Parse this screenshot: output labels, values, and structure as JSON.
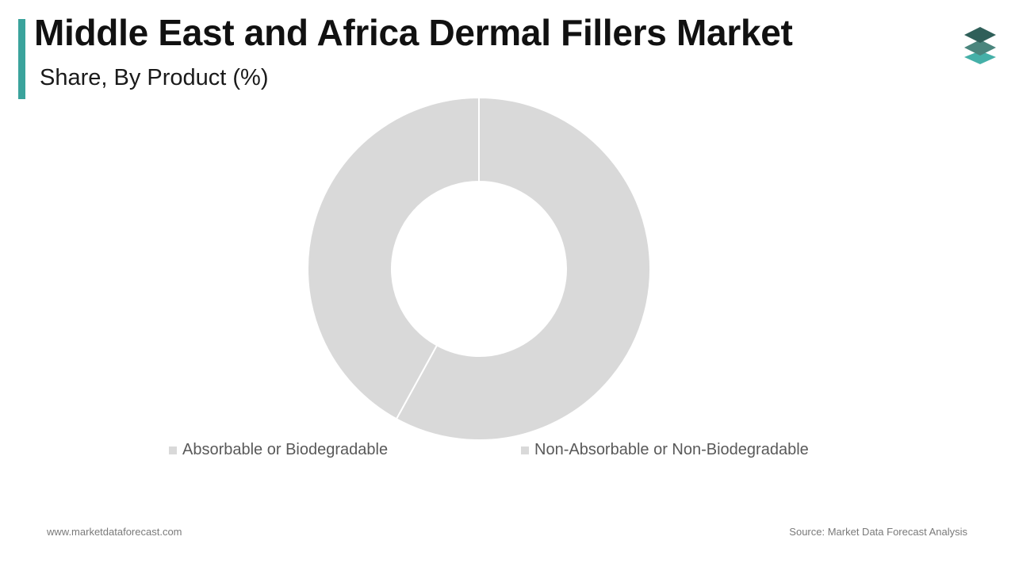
{
  "header": {
    "title": "Middle East and Africa Dermal Fillers Market",
    "subtitle": "Share, By Product (%)"
  },
  "colors": {
    "accent": "#3aa39c",
    "slice_fill": "#d9d9d9",
    "logo_dark": "#2f5f59",
    "logo_mid": "#4a857d",
    "logo_light": "#45b0a8"
  },
  "logo": {
    "icon": "stacked-layers-icon"
  },
  "chart_data": {
    "type": "pie",
    "donut": true,
    "categories": [
      "Absorbable or Biodegradable",
      "Non-Absorbable or Non-Biodegradable"
    ],
    "values": [
      42,
      58
    ],
    "legend_position": "bottom"
  },
  "footer": {
    "website": "www.marketdataforecast.com",
    "source": "Source: Market Data Forecast Analysis"
  }
}
